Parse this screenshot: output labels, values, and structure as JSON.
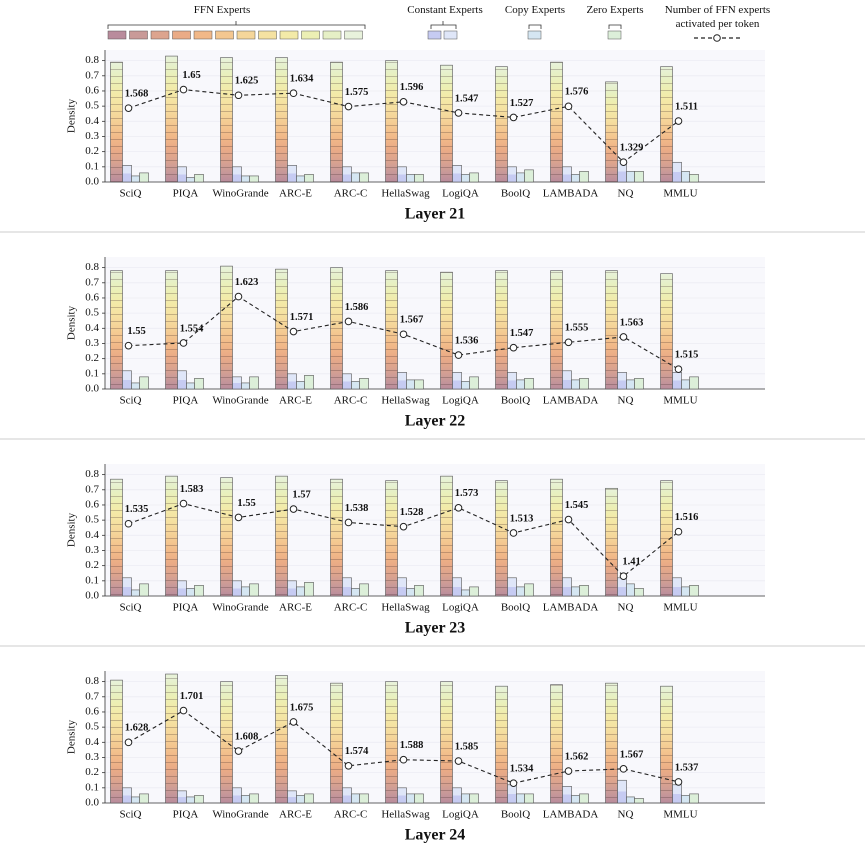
{
  "chart_data": [
    {
      "type": "bar",
      "title": "Layer 21",
      "ylabel": "Density",
      "categories": [
        "SciQ",
        "PIQA",
        "WinoGrande",
        "ARC-E",
        "ARC-C",
        "HellaSwag",
        "LogiQA",
        "BoolQ",
        "LAMBADA",
        "NQ",
        "MMLU"
      ],
      "ylim": [
        0,
        0.87
      ],
      "yticks": [
        {
          "value": 0,
          "label": "0.0"
        },
        0.1,
        0.2,
        0.3,
        0.4,
        0.5,
        0.6,
        0.7,
        0.8
      ],
      "grid": true,
      "series": [
        {
          "name": "FFN Experts",
          "colors": [
            "#b98c9c",
            "#c99a98",
            "#dca48e",
            "#eaab86",
            "#f1b888",
            "#f4c790",
            "#f5d69a",
            "#f5e2a2",
            "#f3eaa8",
            "#ecefb4",
            "#e6f0c6",
            "#e8f2dc"
          ],
          "values": [
            0.79,
            0.83,
            0.82,
            0.82,
            0.79,
            0.8,
            0.77,
            0.76,
            0.79,
            0.66,
            0.76
          ]
        },
        {
          "name": "Constant Experts",
          "colors": [
            "#c6cbf2",
            "#dfe6f8"
          ],
          "values": [
            0.11,
            0.1,
            0.1,
            0.11,
            0.1,
            0.1,
            0.11,
            0.1,
            0.1,
            0.14,
            0.13
          ]
        },
        {
          "name": "Copy Experts",
          "color": "#d5e6f2",
          "values": [
            0.04,
            0.03,
            0.04,
            0.04,
            0.06,
            0.05,
            0.05,
            0.06,
            0.05,
            0.07,
            0.07
          ]
        },
        {
          "name": "Zero Experts",
          "color": "#dcefd9",
          "values": [
            0.06,
            0.05,
            0.04,
            0.05,
            0.06,
            0.05,
            0.06,
            0.08,
            0.07,
            0.07,
            0.05
          ]
        },
        {
          "name": "Number of FFN experts activated per token",
          "type": "line",
          "values": [
            1.568,
            1.65,
            1.625,
            1.634,
            1.575,
            1.596,
            1.547,
            1.527,
            1.576,
            1.329,
            1.511
          ]
        }
      ]
    },
    {
      "type": "bar",
      "title": "Layer 22",
      "ylabel": "Density",
      "categories": [
        "SciQ",
        "PIQA",
        "WinoGrande",
        "ARC-E",
        "ARC-C",
        "HellaSwag",
        "LogiQA",
        "BoolQ",
        "LAMBADA",
        "NQ",
        "MMLU"
      ],
      "ylim": [
        0,
        0.87
      ],
      "yticks": [
        {
          "value": 0,
          "label": "0.0"
        },
        0.1,
        0.2,
        0.3,
        0.4,
        0.5,
        0.6,
        0.7,
        0.8
      ],
      "grid": true,
      "series": [
        {
          "values": [
            0.78,
            0.78,
            0.81,
            0.79,
            0.8,
            0.78,
            0.77,
            0.78,
            0.78,
            0.78,
            0.76
          ]
        },
        {
          "values": [
            0.12,
            0.12,
            0.08,
            0.1,
            0.1,
            0.11,
            0.11,
            0.11,
            0.12,
            0.11,
            0.11
          ]
        },
        {
          "values": [
            0.04,
            0.04,
            0.04,
            0.05,
            0.05,
            0.06,
            0.05,
            0.06,
            0.06,
            0.06,
            0.06
          ]
        },
        {
          "values": [
            0.08,
            0.07,
            0.08,
            0.09,
            0.07,
            0.06,
            0.08,
            0.07,
            0.07,
            0.07,
            0.08
          ]
        },
        {
          "type": "line",
          "values": [
            1.55,
            1.554,
            1.623,
            1.571,
            1.586,
            1.567,
            1.536,
            1.547,
            1.555,
            1.563,
            1.515
          ]
        }
      ]
    },
    {
      "type": "bar",
      "title": "Layer 23",
      "ylabel": "Density",
      "categories": [
        "SciQ",
        "PIQA",
        "WinoGrande",
        "ARC-E",
        "ARC-C",
        "HellaSwag",
        "LogiQA",
        "BoolQ",
        "LAMBADA",
        "NQ",
        "MMLU"
      ],
      "ylim": [
        0,
        0.87
      ],
      "yticks": [
        {
          "value": 0,
          "label": "0.0"
        },
        0.1,
        0.2,
        0.3,
        0.4,
        0.5,
        0.6,
        0.7,
        0.8
      ],
      "grid": true,
      "series": [
        {
          "values": [
            0.77,
            0.79,
            0.78,
            0.79,
            0.77,
            0.76,
            0.79,
            0.76,
            0.77,
            0.71,
            0.76
          ]
        },
        {
          "values": [
            0.12,
            0.1,
            0.1,
            0.1,
            0.12,
            0.12,
            0.12,
            0.12,
            0.12,
            0.12,
            0.12
          ]
        },
        {
          "values": [
            0.04,
            0.05,
            0.06,
            0.06,
            0.05,
            0.05,
            0.04,
            0.06,
            0.06,
            0.08,
            0.06
          ]
        },
        {
          "values": [
            0.08,
            0.07,
            0.08,
            0.09,
            0.08,
            0.07,
            0.06,
            0.08,
            0.07,
            0.05,
            0.07
          ]
        },
        {
          "type": "line",
          "values": [
            1.535,
            1.583,
            1.55,
            1.57,
            1.538,
            1.528,
            1.573,
            1.513,
            1.545,
            1.41,
            1.516
          ]
        }
      ]
    },
    {
      "type": "bar",
      "title": "Layer 24",
      "ylabel": "Density",
      "categories": [
        "SciQ",
        "PIQA",
        "WinoGrande",
        "ARC-E",
        "ARC-C",
        "HellaSwag",
        "LogiQA",
        "BoolQ",
        "LAMBADA",
        "NQ",
        "MMLU"
      ],
      "ylim": [
        0,
        0.87
      ],
      "yticks": [
        {
          "value": 0,
          "label": "0.0"
        },
        0.1,
        0.2,
        0.3,
        0.4,
        0.5,
        0.6,
        0.7,
        0.8
      ],
      "grid": true,
      "series": [
        {
          "values": [
            0.81,
            0.85,
            0.8,
            0.84,
            0.79,
            0.8,
            0.8,
            0.77,
            0.78,
            0.79,
            0.77
          ]
        },
        {
          "values": [
            0.1,
            0.08,
            0.1,
            0.08,
            0.1,
            0.1,
            0.1,
            0.12,
            0.11,
            0.15,
            0.12
          ]
        },
        {
          "values": [
            0.04,
            0.04,
            0.05,
            0.05,
            0.06,
            0.06,
            0.06,
            0.06,
            0.05,
            0.04,
            0.05
          ]
        },
        {
          "values": [
            0.06,
            0.05,
            0.06,
            0.06,
            0.06,
            0.06,
            0.06,
            0.06,
            0.06,
            0.03,
            0.06
          ]
        },
        {
          "type": "line",
          "values": [
            1.628,
            1.701,
            1.608,
            1.675,
            1.574,
            1.588,
            1.585,
            1.534,
            1.562,
            1.567,
            1.537
          ]
        }
      ]
    }
  ]
}
